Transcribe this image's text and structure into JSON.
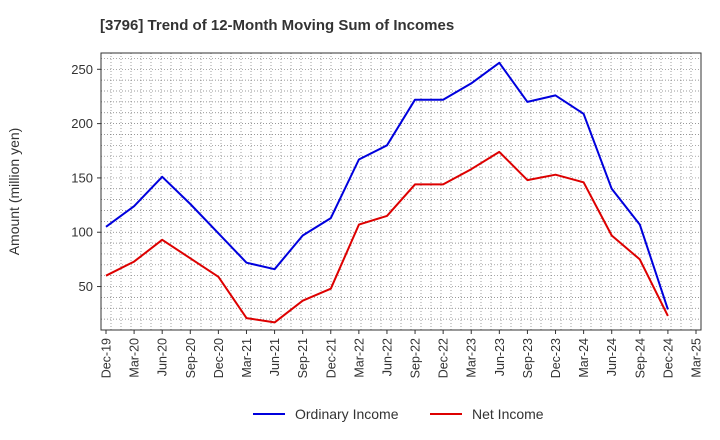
{
  "chart_data": {
    "type": "line",
    "title": "[3796]  Trend of 12-Month Moving Sum of Incomes",
    "ylabel": "Amount (million yen)",
    "xlabel": "",
    "ylim": [
      10,
      265
    ],
    "yticks": [
      50,
      100,
      150,
      200,
      250
    ],
    "grid": true,
    "legend_position": "bottom-center",
    "categories": [
      "Dec-19",
      "Mar-20",
      "Jun-20",
      "Sep-20",
      "Dec-20",
      "Mar-21",
      "Jun-21",
      "Sep-21",
      "Dec-21",
      "Mar-22",
      "Jun-22",
      "Sep-22",
      "Dec-22",
      "Mar-23",
      "Jun-23",
      "Sep-23",
      "Dec-23",
      "Mar-24",
      "Jun-24",
      "Sep-24",
      "Dec-24",
      "Mar-25"
    ],
    "series": [
      {
        "name": "Ordinary Income",
        "color": "#0000dd",
        "values": [
          105,
          124,
          151,
          126,
          99,
          72,
          66,
          97,
          113,
          167,
          180,
          222,
          222,
          237,
          256,
          220,
          226,
          209,
          140,
          107,
          29,
          null
        ]
      },
      {
        "name": "Net Income",
        "color": "#dd0000",
        "values": [
          60,
          73,
          93,
          76,
          59,
          21,
          17,
          37,
          48,
          107,
          115,
          144,
          144,
          158,
          174,
          148,
          153,
          146,
          97,
          75,
          23,
          null
        ]
      }
    ]
  }
}
